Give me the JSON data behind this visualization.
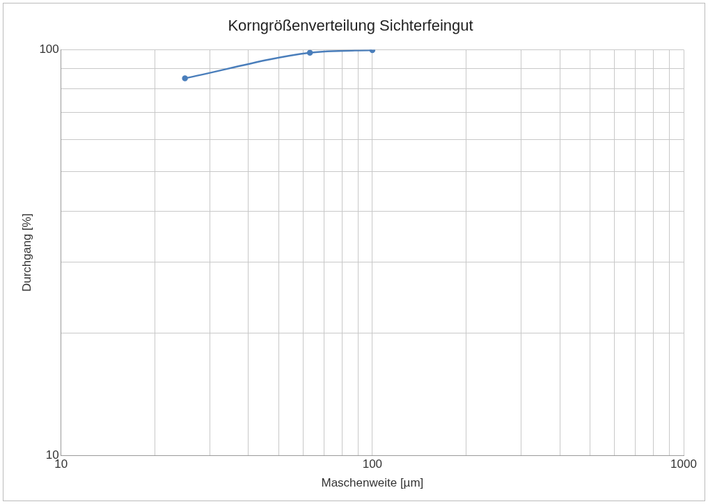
{
  "chart_data": {
    "type": "line",
    "title": "Korngrößenverteilung Sichterfeingut",
    "xlabel": "Maschenweite [µm]",
    "ylabel": "Durchgang [%]",
    "x": [
      25,
      63,
      100
    ],
    "series": [
      {
        "color": "#4a7ebb",
        "values": [
          85,
          98.3,
          99.8
        ]
      }
    ],
    "log": "xy",
    "xlim": [
      10,
      1000
    ],
    "xticks": [
      10,
      100,
      1000
    ],
    "ylim": [
      10,
      100
    ],
    "yticks": [
      10,
      100
    ],
    "grid": true,
    "legend": false,
    "marker": "circle",
    "line_style": "solid"
  }
}
